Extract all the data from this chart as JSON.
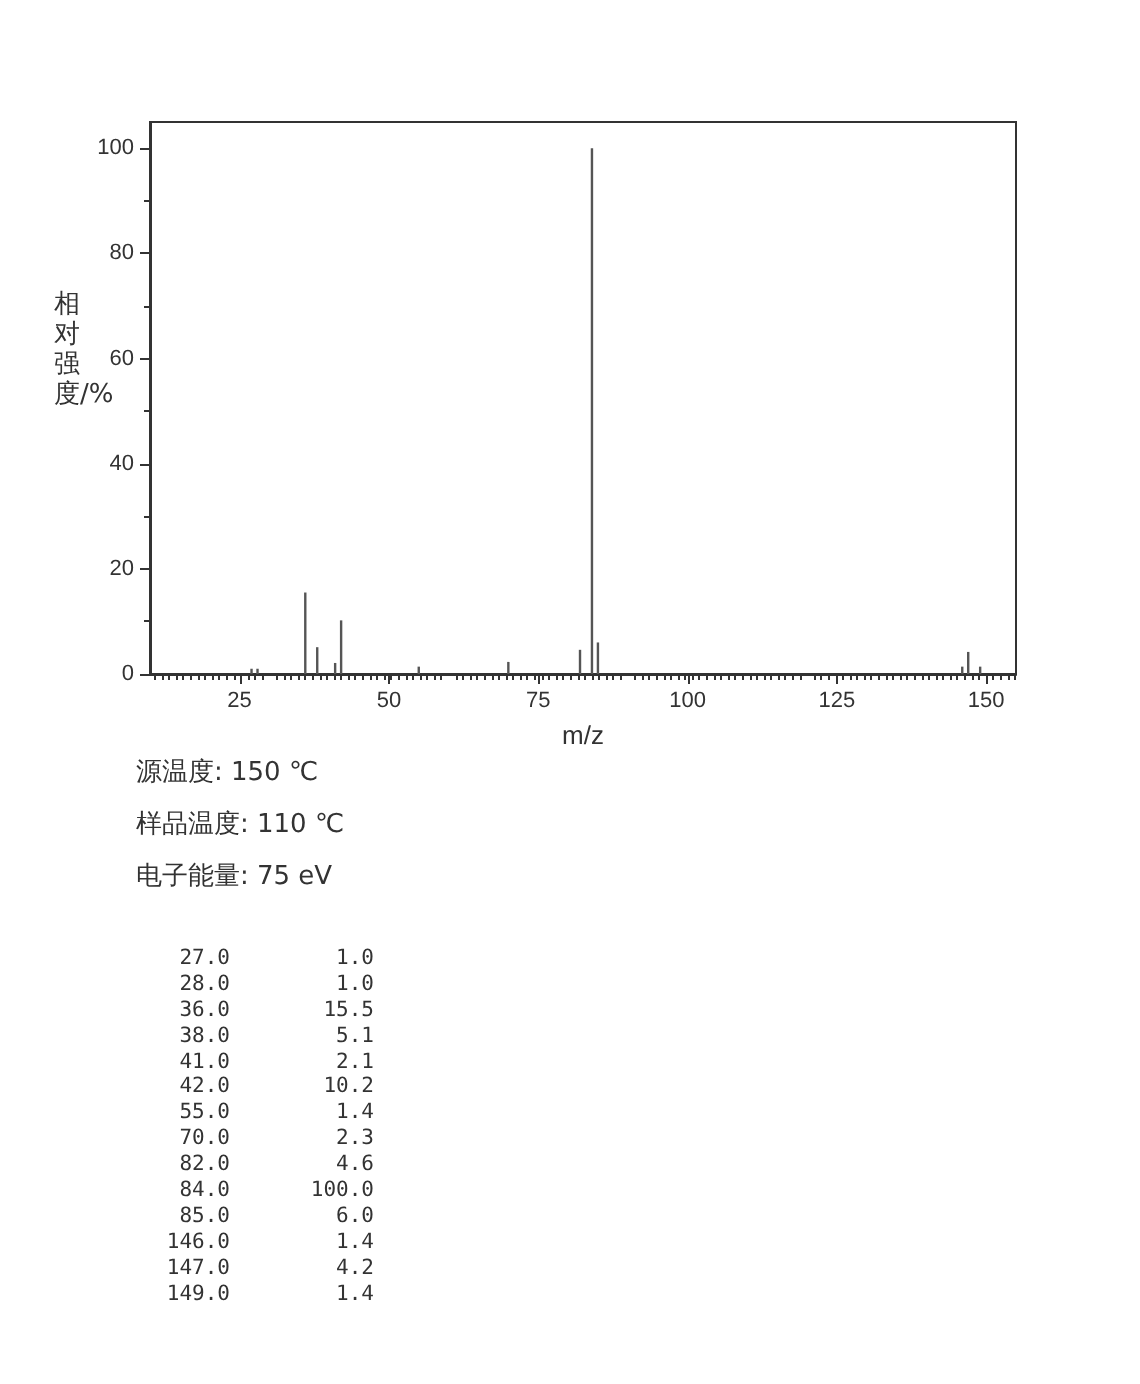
{
  "chart_data": {
    "type": "bar",
    "xlabel": "m/z",
    "ylabel": "相对强度/%",
    "x": [
      27,
      28,
      36,
      38,
      41,
      42,
      55,
      70,
      82,
      84,
      85,
      146,
      147,
      149
    ],
    "values": [
      1.0,
      1.0,
      15.5,
      5.1,
      2.1,
      10.2,
      1.4,
      2.3,
      4.6,
      100.0,
      6.0,
      1.4,
      4.2,
      1.4
    ],
    "color": "#555555",
    "xlim": [
      10,
      155
    ],
    "xticks": [
      25,
      50,
      75,
      100,
      125,
      150
    ],
    "ylim": [
      0,
      105
    ],
    "yticks": [
      0,
      20,
      40,
      60,
      80,
      100
    ],
    "grid": false,
    "annotations": [
      "源温度: 150 ℃",
      "样品温度: 110 ℃",
      "电子能量: 75 eV",
      "27.0 1.0",
      "28.0 1.0",
      "36.0 15.5",
      "38.0 5.1",
      "41.0 2.1",
      "42.0 10.2",
      "55.0 1.4",
      "70.0 2.3",
      "82.0 4.6",
      "84.0 100.0",
      "85.0 6.0",
      "146.0 1.4",
      "147.0 4.2",
      "149.0 1.4"
    ]
  }
}
